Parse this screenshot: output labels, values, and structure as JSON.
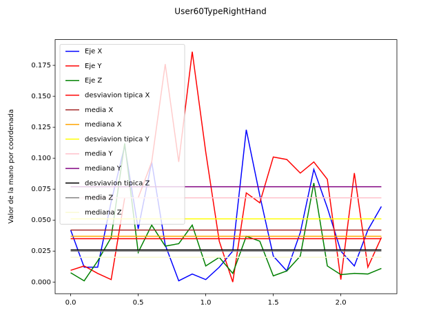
{
  "chart_data": {
    "type": "line",
    "title": "User60TypeRightHand",
    "ylabel": "Valor de la mano por coordenada",
    "x": [
      0,
      0.1,
      0.2,
      0.3,
      0.4,
      0.5,
      0.6,
      0.7,
      0.8,
      0.9,
      1.0,
      1.1,
      1.2,
      1.3,
      1.4,
      1.5,
      1.6,
      1.7,
      1.8,
      1.9,
      2.0,
      2.1,
      2.2,
      2.3
    ],
    "series": [
      {
        "name": "Eje X",
        "color": "blue",
        "values": [
          0.042,
          0.012,
          0.012,
          0.065,
          0.11,
          0.043,
          0.097,
          0.03,
          0.001,
          0.0065,
          0.002,
          0.012,
          0.025,
          0.123,
          0.07,
          0.021,
          0.009,
          0.04,
          0.091,
          0.06,
          0.025,
          0.013,
          0.042,
          0.061
        ]
      },
      {
        "name": "Eje Y",
        "color": "red",
        "values": [
          0.0095,
          0.013,
          0.007,
          0.002,
          0.068,
          0.068,
          0.097,
          0.176,
          0.097,
          0.186,
          0.105,
          0.033,
          0.0,
          0.072,
          0.064,
          0.101,
          0.099,
          0.088,
          0.097,
          0.083,
          0.002,
          0.088,
          0.012,
          0.036
        ]
      },
      {
        "name": "Eje Z",
        "color": "green",
        "values": [
          0.0075,
          0.001,
          0.017,
          0.036,
          0.112,
          0.024,
          0.046,
          0.029,
          0.031,
          0.046,
          0.013,
          0.02,
          0.007,
          0.037,
          0.033,
          0.005,
          0.009,
          0.021,
          0.08,
          0.013,
          0.006,
          0.007,
          0.0065,
          0.011
        ]
      },
      {
        "name": "desviavion tipica X",
        "color": "red",
        "values": [
          0.035,
          0.035,
          0.035,
          0.035,
          0.035,
          0.035,
          0.035,
          0.035,
          0.035,
          0.035,
          0.035,
          0.035,
          0.035,
          0.035,
          0.035,
          0.035,
          0.035,
          0.035,
          0.035,
          0.035,
          0.035,
          0.035,
          0.035,
          0.035
        ]
      },
      {
        "name": "media X",
        "color": "brown",
        "values": [
          0.042,
          0.042,
          0.042,
          0.042,
          0.042,
          0.042,
          0.042,
          0.042,
          0.042,
          0.042,
          0.042,
          0.042,
          0.042,
          0.042,
          0.042,
          0.042,
          0.042,
          0.042,
          0.042,
          0.042,
          0.042,
          0.042,
          0.042,
          0.042
        ]
      },
      {
        "name": "mediana X",
        "color": "orange",
        "values": [
          0.037,
          0.037,
          0.037,
          0.037,
          0.037,
          0.037,
          0.037,
          0.037,
          0.037,
          0.037,
          0.037,
          0.037,
          0.037,
          0.037,
          0.037,
          0.037,
          0.037,
          0.037,
          0.037,
          0.037,
          0.037,
          0.037,
          0.037,
          0.037
        ]
      },
      {
        "name": "desviavion tipica Y",
        "color": "yellow",
        "values": [
          0.051,
          0.051,
          0.051,
          0.051,
          0.051,
          0.051,
          0.051,
          0.051,
          0.051,
          0.051,
          0.051,
          0.051,
          0.051,
          0.051,
          0.051,
          0.051,
          0.051,
          0.051,
          0.051,
          0.051,
          0.051,
          0.051,
          0.051,
          0.051
        ]
      },
      {
        "name": "media Y",
        "color": "pink",
        "values": [
          0.068,
          0.068,
          0.068,
          0.068,
          0.068,
          0.068,
          0.068,
          0.068,
          0.068,
          0.068,
          0.068,
          0.068,
          0.068,
          0.068,
          0.068,
          0.068,
          0.068,
          0.068,
          0.068,
          0.068,
          0.068,
          0.068,
          0.068,
          0.068
        ]
      },
      {
        "name": "mediana Y",
        "color": "purple",
        "values": [
          0.077,
          0.077,
          0.077,
          0.077,
          0.077,
          0.077,
          0.077,
          0.077,
          0.077,
          0.077,
          0.077,
          0.077,
          0.077,
          0.077,
          0.077,
          0.077,
          0.077,
          0.077,
          0.077,
          0.077,
          0.077,
          0.077,
          0.077,
          0.077
        ]
      },
      {
        "name": "desviavion tipica Z",
        "color": "black",
        "values": [
          0.026,
          0.026,
          0.026,
          0.026,
          0.026,
          0.026,
          0.026,
          0.026,
          0.026,
          0.026,
          0.026,
          0.026,
          0.026,
          0.026,
          0.026,
          0.026,
          0.026,
          0.026,
          0.026,
          0.026,
          0.026,
          0.026,
          0.026,
          0.026
        ]
      },
      {
        "name": "media Z",
        "color": "grey",
        "values": [
          0.025,
          0.025,
          0.025,
          0.025,
          0.025,
          0.025,
          0.025,
          0.025,
          0.025,
          0.025,
          0.025,
          0.025,
          0.025,
          0.025,
          0.025,
          0.025,
          0.025,
          0.025,
          0.025,
          0.025,
          0.025,
          0.025,
          0.025,
          0.025
        ]
      },
      {
        "name": "mediana Z",
        "color": "#fafad2",
        "values": [
          0.02,
          0.02,
          0.02,
          0.02,
          0.02,
          0.02,
          0.02,
          0.02,
          0.02,
          0.02,
          0.02,
          0.02,
          0.02,
          0.02,
          0.02,
          0.02,
          0.02,
          0.02,
          0.02,
          0.02,
          0.02,
          0.02,
          0.02,
          0.02
        ]
      }
    ],
    "xlim": [
      -0.115,
      2.415
    ],
    "ylim": [
      -0.0094,
      0.1958
    ],
    "xticks": [
      {
        "value": 0,
        "label": "0.0"
      },
      {
        "value": 0.5,
        "label": "0.5"
      },
      {
        "value": 1.0,
        "label": "1.0"
      },
      {
        "value": 1.5,
        "label": "1.5"
      },
      {
        "value": 2.0,
        "label": "2.0"
      }
    ],
    "yticks": [
      {
        "value": 0,
        "label": "0.000"
      },
      {
        "value": 0.025,
        "label": "0.025"
      },
      {
        "value": 0.05,
        "label": "0.050"
      },
      {
        "value": 0.075,
        "label": "0.075"
      },
      {
        "value": 0.1,
        "label": "0.100"
      },
      {
        "value": 0.125,
        "label": "0.125"
      },
      {
        "value": 0.15,
        "label": "0.150"
      },
      {
        "value": 0.175,
        "label": "0.175"
      }
    ],
    "legend": "upper left",
    "grid": false
  }
}
